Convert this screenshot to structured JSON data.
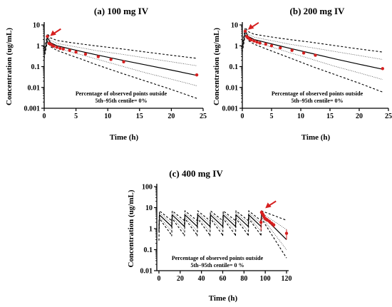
{
  "chart_data": [
    {
      "type": "line",
      "title": "(a) 100 mg IV",
      "xlabel": "Time (h)",
      "ylabel": "Concentration (ug/mL)",
      "xlim": [
        0,
        25
      ],
      "ylim": [
        0.001,
        10
      ],
      "yscale": "log",
      "xticks": [
        0,
        5,
        10,
        15,
        20,
        25
      ],
      "yticks": [
        0.001,
        0.01,
        0.1,
        1,
        10
      ],
      "ytick_labels": [
        "0.001",
        "0.01",
        "0.1",
        "1",
        "10"
      ],
      "annotation_lines": [
        "Percentage of observed points outside",
        "5th–95th centile= 0%"
      ],
      "marker_color": "#d62020",
      "arrow_at": {
        "x": 0.6,
        "y": 2.5
      },
      "series": [
        {
          "role": "median",
          "style": "solid",
          "x": [
            0,
            0.5,
            1,
            2,
            4,
            6,
            8,
            12,
            16,
            20,
            24
          ],
          "y": [
            0.35,
            2.5,
            1.4,
            1.0,
            0.72,
            0.52,
            0.38,
            0.21,
            0.12,
            0.068,
            0.038
          ]
        },
        {
          "role": "5th centile",
          "style": "dashed",
          "x": [
            0,
            0.5,
            1,
            2,
            4,
            6,
            8,
            12,
            16,
            20,
            24
          ],
          "y": [
            0.25,
            1.6,
            0.9,
            0.6,
            0.36,
            0.22,
            0.13,
            0.05,
            0.02,
            0.008,
            0.003
          ]
        },
        {
          "role": "95th centile",
          "style": "dashed",
          "x": [
            0,
            0.5,
            1,
            2,
            4,
            6,
            8,
            12,
            16,
            20,
            24
          ],
          "y": [
            0.5,
            3.8,
            2.4,
            1.8,
            1.45,
            1.2,
            1.0,
            0.72,
            0.5,
            0.35,
            0.25
          ]
        },
        {
          "role": "inner lower",
          "style": "dotted",
          "x": [
            0,
            0.5,
            1,
            2,
            4,
            6,
            8,
            12,
            16,
            20,
            24
          ],
          "y": [
            0.3,
            2.0,
            1.1,
            0.8,
            0.52,
            0.36,
            0.24,
            0.11,
            0.05,
            0.025,
            0.012
          ]
        },
        {
          "role": "inner upper",
          "style": "dotted",
          "x": [
            0,
            0.5,
            1,
            2,
            4,
            6,
            8,
            12,
            16,
            20,
            24
          ],
          "y": [
            0.42,
            3.0,
            1.8,
            1.3,
            1.0,
            0.78,
            0.6,
            0.4,
            0.26,
            0.17,
            0.11
          ]
        },
        {
          "role": "observed",
          "style": "points",
          "x": [
            0.5,
            0.75,
            1,
            1.25,
            1.5,
            2,
            2.5,
            3,
            4,
            5,
            6.5,
            8.5,
            10.5,
            12.5,
            24
          ],
          "y": [
            2.8,
            1.3,
            1.2,
            1.05,
            0.95,
            0.85,
            0.75,
            0.7,
            0.6,
            0.5,
            0.4,
            0.3,
            0.22,
            0.17,
            0.04
          ]
        }
      ]
    },
    {
      "type": "line",
      "title": "(b) 200 mg IV",
      "xlabel": "Time (h)",
      "ylabel": "Concentration (ug/mL)",
      "xlim": [
        0,
        25
      ],
      "ylim": [
        0.001,
        10
      ],
      "yscale": "log",
      "xticks": [
        0,
        5,
        10,
        15,
        20,
        25
      ],
      "yticks": [
        0.001,
        0.01,
        0.1,
        1,
        10
      ],
      "ytick_labels": [
        "0.001",
        "0.01",
        "0.1",
        "1",
        "10"
      ],
      "annotation_lines": [
        "Percentage of observed points outside",
        "5th–95th centile= 0%"
      ],
      "marker_color": "#d62020",
      "arrow_at": {
        "x": 0.6,
        "y": 5
      },
      "series": [
        {
          "role": "median",
          "style": "solid",
          "x": [
            0,
            0.5,
            1,
            2,
            4,
            6,
            8,
            12,
            16,
            20,
            24
          ],
          "y": [
            0.7,
            5.0,
            2.8,
            2.0,
            1.45,
            1.05,
            0.77,
            0.42,
            0.23,
            0.13,
            0.075
          ]
        },
        {
          "role": "5th centile",
          "style": "dashed",
          "x": [
            0,
            0.5,
            1,
            2,
            4,
            6,
            8,
            12,
            16,
            20,
            24
          ],
          "y": [
            0.5,
            3.2,
            1.8,
            1.2,
            0.72,
            0.44,
            0.27,
            0.1,
            0.04,
            0.016,
            0.006
          ]
        },
        {
          "role": "95th centile",
          "style": "dashed",
          "x": [
            0,
            0.5,
            1,
            2,
            4,
            6,
            8,
            12,
            16,
            20,
            24
          ],
          "y": [
            1.0,
            7.5,
            4.8,
            3.6,
            2.9,
            2.4,
            2.0,
            1.45,
            1.0,
            0.7,
            0.5
          ]
        },
        {
          "role": "inner lower",
          "style": "dotted",
          "x": [
            0,
            0.5,
            1,
            2,
            4,
            6,
            8,
            12,
            16,
            20,
            24
          ],
          "y": [
            0.6,
            4.0,
            2.2,
            1.6,
            1.04,
            0.72,
            0.48,
            0.22,
            0.1,
            0.05,
            0.024
          ]
        },
        {
          "role": "inner upper",
          "style": "dotted",
          "x": [
            0,
            0.5,
            1,
            2,
            4,
            6,
            8,
            12,
            16,
            20,
            24
          ],
          "y": [
            0.85,
            6.0,
            3.6,
            2.6,
            2.0,
            1.56,
            1.2,
            0.8,
            0.52,
            0.34,
            0.22
          ]
        },
        {
          "role": "observed",
          "style": "points",
          "x": [
            0.5,
            0.75,
            1,
            1.25,
            1.5,
            2,
            2.5,
            3,
            4,
            5,
            6.5,
            8.5,
            10.5,
            12.5,
            24
          ],
          "y": [
            5.0,
            2.8,
            2.4,
            2.1,
            1.9,
            1.7,
            1.5,
            1.35,
            1.2,
            1.0,
            0.8,
            0.6,
            0.45,
            0.35,
            0.08
          ]
        }
      ]
    },
    {
      "type": "line",
      "title": "(c) 400 mg IV",
      "xlabel": "Time (h)",
      "ylabel": "Concentration (ug/mL)",
      "xlim": [
        -2,
        122
      ],
      "ylim": [
        0.01,
        100
      ],
      "yscale": "log",
      "xticks": [
        0,
        20,
        40,
        60,
        80,
        100,
        120
      ],
      "yticks": [
        0.01,
        0.1,
        1,
        10,
        100
      ],
      "ytick_labels": [
        "0.01",
        "0.1",
        "1",
        "10",
        "100"
      ],
      "annotation_lines": [
        "Percentage of observed points outside",
        "5th–95th centile= 0 %"
      ],
      "marker_color": "#d62020",
      "arrow_at": {
        "x": 98,
        "y": 8
      },
      "dosing_interval_h": 12,
      "dose_times_h": [
        0,
        12,
        24,
        36,
        48,
        60,
        72,
        84,
        96
      ],
      "curve_peak": {
        "median": 4.5,
        "p5": 3.0,
        "p95": 7.0,
        "inner_lower": 3.6,
        "inner_upper": 5.6
      },
      "curve_trough": {
        "median": 1.2,
        "p5": 0.45,
        "p95": 2.3,
        "inner_lower": 0.7,
        "inner_upper": 1.7
      },
      "curve_24h_after_last": {
        "median": 0.3,
        "p5": 0.04,
        "p95": 2.5,
        "inner_lower": 0.1,
        "inner_upper": 0.9
      },
      "series": [
        {
          "role": "observed",
          "style": "points",
          "x": [
            96,
            96.5,
            97,
            97.5,
            98,
            98.5,
            99,
            100,
            101,
            102,
            104,
            106,
            108,
            120
          ],
          "y": [
            2,
            6,
            5.5,
            5,
            4.5,
            4,
            3.5,
            3,
            2.8,
            2.6,
            2.2,
            1.8,
            1.5,
            0.6
          ],
          "err": [
            1.2,
            1.5,
            1.2,
            1.0,
            0.8,
            0.7,
            0.7,
            0.6,
            0.6,
            0.5,
            0.5,
            0.4,
            0.4,
            0.3
          ]
        }
      ]
    }
  ]
}
